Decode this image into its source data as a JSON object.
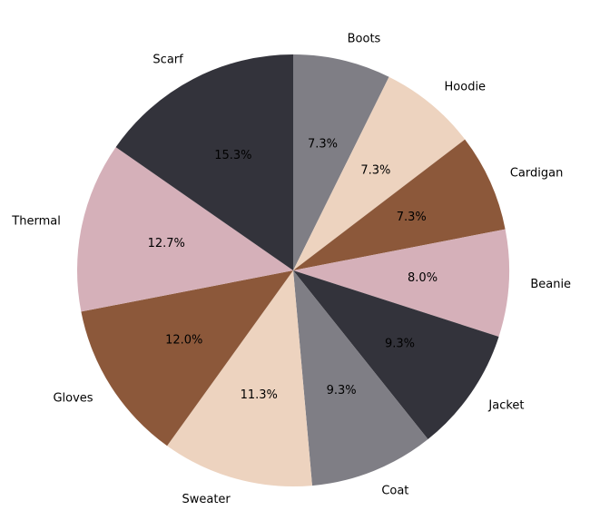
{
  "chart_data": {
    "type": "pie",
    "title": "",
    "start_angle_deg": 90,
    "direction": "clockwise",
    "slices": [
      {
        "label": "Boots",
        "value": 7.3,
        "pct_label": "7.3%",
        "color": "#7f7e85"
      },
      {
        "label": "Hoodie",
        "value": 7.3,
        "pct_label": "7.3%",
        "color": "#edd3bf"
      },
      {
        "label": "Cardigan",
        "value": 7.3,
        "pct_label": "7.3%",
        "color": "#8c583a"
      },
      {
        "label": "Beanie",
        "value": 8.0,
        "pct_label": "8.0%",
        "color": "#d5b0b9"
      },
      {
        "label": "Jacket",
        "value": 9.3,
        "pct_label": "9.3%",
        "color": "#33333b"
      },
      {
        "label": "Coat",
        "value": 9.3,
        "pct_label": "9.3%",
        "color": "#7f7e85"
      },
      {
        "label": "Sweater",
        "value": 11.3,
        "pct_label": "11.3%",
        "color": "#edd3bf"
      },
      {
        "label": "Gloves",
        "value": 12.0,
        "pct_label": "12.0%",
        "color": "#8c583a"
      },
      {
        "label": "Thermal",
        "value": 12.7,
        "pct_label": "12.7%",
        "color": "#d5b0b9"
      },
      {
        "label": "Scarf",
        "value": 15.3,
        "pct_label": "15.3%",
        "color": "#33333b"
      }
    ]
  }
}
